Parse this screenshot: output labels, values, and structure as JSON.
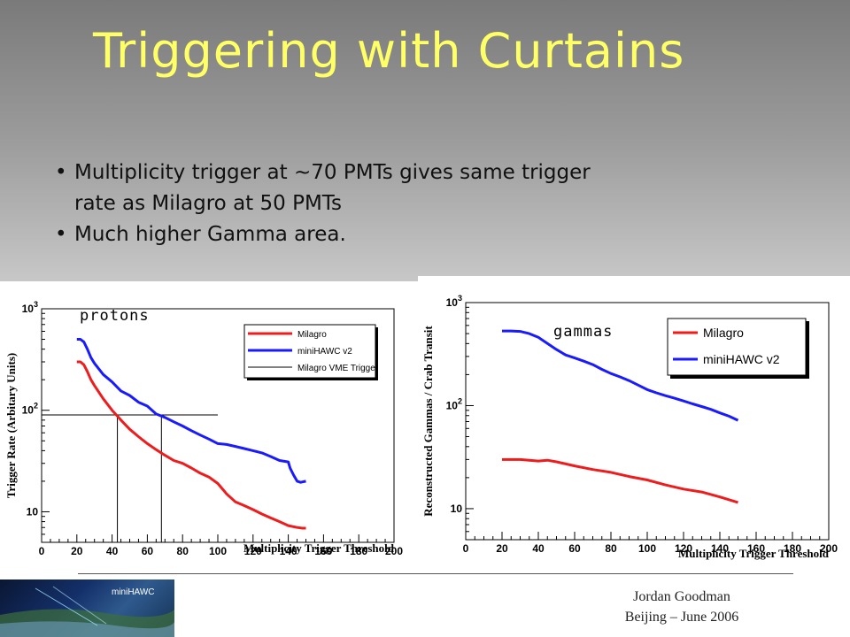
{
  "slide": {
    "title": "Triggering with Curtains",
    "bullets": [
      "Multiplicity trigger at ~70 PMTs gives same trigger rate as Milagro at 50 PMTs",
      "Much higher Gamma area."
    ],
    "footer": {
      "author": "Jordan Goodman",
      "event": "Beijing – June 2006",
      "logo_text": "miniHAWC"
    }
  },
  "colors": {
    "milagro": "#ee1c1c",
    "minihawc": "#1a1aff",
    "vme": "#000000",
    "title": "#ffff66"
  },
  "chart_data": [
    {
      "type": "line",
      "annotation": "protons",
      "xlabel": "Multiplicity Trigger Threshold",
      "ylabel": "Trigger Rate (Arbitary Units)",
      "xlim": [
        0,
        200
      ],
      "ylim": [
        5,
        1000
      ],
      "ylog": true,
      "xticks": [
        "0",
        "20",
        "40",
        "60",
        "80",
        "100",
        "120",
        "140",
        "160",
        "180",
        "200"
      ],
      "yticks": [
        {
          "v": 1000,
          "base": "10",
          "exp": "3"
        },
        {
          "v": 100,
          "base": "10",
          "exp": "2"
        },
        {
          "v": 10,
          "base": "10",
          "exp": ""
        }
      ],
      "legend": {
        "position": "top-right"
      },
      "series": [
        {
          "name": "Milagro",
          "style": "milagro",
          "x": [
            20,
            22,
            24,
            26,
            28,
            30,
            35,
            40,
            45,
            50,
            55,
            60,
            65,
            70,
            75,
            80,
            85,
            90,
            95,
            100,
            105,
            110,
            115,
            120,
            125,
            130,
            135,
            140,
            145,
            148,
            150
          ],
          "y": [
            300,
            300,
            280,
            240,
            200,
            175,
            130,
            100,
            80,
            65,
            55,
            47,
            41,
            36,
            32,
            30,
            27,
            24,
            22,
            19,
            15,
            12.5,
            11.5,
            10.5,
            9.5,
            8.7,
            8,
            7.3,
            7.0,
            6.9,
            6.9
          ]
        },
        {
          "name": "miniHAWC v2",
          "style": "minihawc",
          "x": [
            20,
            22,
            24,
            26,
            28,
            30,
            35,
            40,
            45,
            50,
            55,
            60,
            65,
            70,
            75,
            80,
            85,
            90,
            95,
            100,
            105,
            110,
            115,
            120,
            125,
            130,
            135,
            140,
            141,
            143,
            145,
            147,
            150
          ],
          "y": [
            500,
            500,
            470,
            400,
            330,
            290,
            225,
            190,
            155,
            140,
            120,
            110,
            92,
            85,
            77,
            70,
            63,
            57,
            52,
            47,
            46,
            44,
            42,
            40,
            38,
            35,
            32,
            31,
            27,
            23,
            20,
            19.5,
            20
          ]
        },
        {
          "name": "Milagro VME Trigger",
          "style": "vme",
          "x": [],
          "y": []
        }
      ],
      "guides": [
        {
          "from": [
            0,
            90
          ],
          "to": [
            100,
            90
          ]
        },
        {
          "from": [
            43,
            90
          ],
          "to": [
            43,
            5
          ]
        },
        {
          "from": [
            68,
            90
          ],
          "to": [
            68,
            5
          ]
        }
      ]
    },
    {
      "type": "line",
      "annotation": "gammas",
      "xlabel": "Multiplicity Trigger Threshold",
      "ylabel": "Reconstructed Gammas / Crab Transit",
      "xlim": [
        0,
        200
      ],
      "ylim": [
        5,
        1000
      ],
      "ylog": true,
      "xticks": [
        "0",
        "20",
        "40",
        "60",
        "80",
        "100",
        "120",
        "140",
        "160",
        "180",
        "200"
      ],
      "yticks": [
        {
          "v": 1000,
          "base": "10",
          "exp": "3"
        },
        {
          "v": 100,
          "base": "10",
          "exp": "2"
        },
        {
          "v": 10,
          "base": "10",
          "exp": ""
        }
      ],
      "legend": {
        "position": "top-right"
      },
      "series": [
        {
          "name": "Milagro",
          "style": "milagro",
          "x": [
            20,
            30,
            40,
            45,
            50,
            60,
            70,
            80,
            90,
            100,
            110,
            120,
            130,
            140,
            150
          ],
          "y": [
            30,
            30,
            29,
            29.5,
            28.5,
            26,
            24,
            22.5,
            20.5,
            19,
            17,
            15.5,
            14.5,
            13,
            11.5
          ]
        },
        {
          "name": "miniHAWC v2",
          "style": "minihawc",
          "x": [
            20,
            25,
            30,
            35,
            40,
            45,
            50,
            55,
            60,
            65,
            70,
            75,
            80,
            85,
            90,
            95,
            100,
            105,
            110,
            115,
            120,
            125,
            130,
            135,
            140,
            145,
            150
          ],
          "y": [
            530,
            530,
            525,
            500,
            460,
            400,
            350,
            310,
            290,
            270,
            250,
            225,
            205,
            190,
            175,
            158,
            143,
            133,
            125,
            118,
            111,
            104,
            98,
            92,
            85,
            79,
            72
          ]
        }
      ]
    }
  ]
}
